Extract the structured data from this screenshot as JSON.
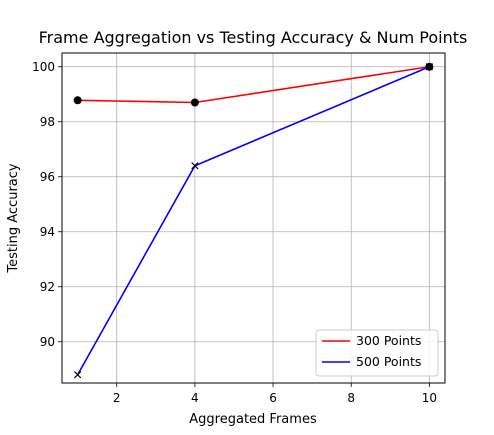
{
  "chart_data": {
    "type": "line",
    "title": "Frame Aggregation vs Testing Accuracy & Num Points",
    "xlabel": "Aggregated Frames",
    "ylabel": "Testing Accuracy",
    "xlim": [
      0.6,
      10.4
    ],
    "ylim": [
      88.5,
      100.5
    ],
    "xticks": [
      2,
      4,
      6,
      8,
      10
    ],
    "yticks": [
      90,
      92,
      94,
      96,
      98,
      100
    ],
    "grid": true,
    "legend_position": "lower-right",
    "series": [
      {
        "name": "300 Points",
        "color": "#ff0000",
        "marker": "circle",
        "x": [
          1,
          4,
          10
        ],
        "y": [
          98.78,
          98.7,
          100.0
        ]
      },
      {
        "name": "500 Points",
        "color": "#0000ff",
        "marker": "x",
        "x": [
          1,
          4,
          10
        ],
        "y": [
          88.8,
          96.4,
          100.0
        ]
      }
    ]
  }
}
